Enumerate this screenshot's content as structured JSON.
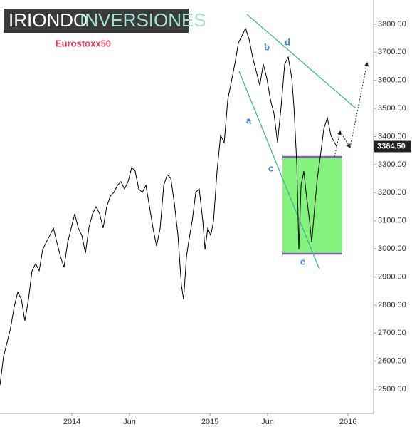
{
  "chart_data": {
    "type": "line",
    "title": "Eurostoxx50",
    "logo": [
      "IRIONDO",
      "INVERSIONES"
    ],
    "annotations": [
      "a",
      "b",
      "c",
      "d",
      "e"
    ],
    "last_price_label": "3364.50",
    "x": [
      2013.479,
      2013.505,
      2013.531,
      2013.556,
      2013.582,
      2013.608,
      2013.634,
      2013.659,
      2013.685,
      2013.711,
      2013.737,
      2013.763,
      2013.788,
      2013.814,
      2013.84,
      2013.866,
      2013.891,
      2013.917,
      2013.943,
      2013.969,
      2013.995,
      2014.02,
      2014.046,
      2014.072,
      2014.098,
      2014.123,
      2014.149,
      2014.175,
      2014.201,
      2014.226,
      2014.252,
      2014.278,
      2014.304,
      2014.33,
      2014.355,
      2014.381,
      2014.407,
      2014.433,
      2014.458,
      2014.484,
      2014.51,
      2014.536,
      2014.562,
      2014.587,
      2014.613,
      2014.639,
      2014.665,
      2014.69,
      2014.716,
      2014.742,
      2014.768,
      2014.793,
      2014.809,
      2014.83,
      2014.845,
      2014.871,
      2014.897,
      2014.922,
      2014.948,
      2014.964,
      2014.984,
      2015.005,
      2015.026,
      2015.051,
      2015.077,
      2015.103,
      2015.129,
      2015.154,
      2015.18,
      2015.206,
      2015.232,
      2015.258,
      2015.283,
      2015.309,
      2015.335,
      2015.361,
      2015.386,
      2015.412,
      2015.438,
      2015.464,
      2015.489,
      2015.515,
      2015.541,
      2015.567,
      2015.593,
      2015.608,
      2015.629,
      2015.644,
      2015.66,
      2015.68,
      2015.696,
      2015.721,
      2015.737,
      2015.758,
      2015.778,
      2015.799,
      2015.825,
      2015.85,
      2015.876,
      2015.902,
      2015.917
    ],
    "series": [
      {
        "color": "#000000",
        "values": [
          2515,
          2617,
          2668,
          2718,
          2795,
          2846,
          2820,
          2744,
          2820,
          2922,
          2947,
          2922,
          2998,
          3023,
          3048,
          3074,
          3023,
          2972,
          2934,
          3023,
          3074,
          3125,
          3074,
          3048,
          2985,
          3074,
          3125,
          3150,
          3125,
          3074,
          3150,
          3188,
          3201,
          3226,
          3239,
          3213,
          3239,
          3290,
          3277,
          3213,
          3201,
          3226,
          3150,
          3074,
          3010,
          3074,
          3226,
          3264,
          3252,
          3163,
          3048,
          2871,
          2820,
          2972,
          3023,
          3099,
          3201,
          3213,
          3099,
          2998,
          3074,
          3048,
          3099,
          3277,
          3404,
          3379,
          3531,
          3594,
          3658,
          3734,
          3759,
          3785,
          3747,
          3683,
          3632,
          3582,
          3658,
          3607,
          3531,
          3480,
          3379,
          3505,
          3658,
          3683,
          3607,
          3505,
          3302,
          2998,
          3226,
          3277,
          3201,
          3099,
          3023,
          3150,
          3252,
          3328,
          3429,
          3467,
          3404,
          3379,
          3364.5
        ]
      }
    ],
    "xlim": [
      2013.479,
      2016.185
    ],
    "xticks": [
      {
        "value": 2014,
        "label": "2014"
      },
      {
        "value": 2014.417,
        "label": "Jun"
      },
      {
        "value": 2015,
        "label": "2015"
      },
      {
        "value": 2015.417,
        "label": "Jun"
      },
      {
        "value": 2016,
        "label": "2016"
      }
    ],
    "ylim": [
      2414,
      3886
    ],
    "yticks": [
      {
        "value": 2500,
        "label": "2500.00"
      },
      {
        "value": 2600,
        "label": "2600.00"
      },
      {
        "value": 2700,
        "label": "2700.00"
      },
      {
        "value": 2800,
        "label": "2800.00"
      },
      {
        "value": 2900,
        "label": "2900.00"
      },
      {
        "value": 3000,
        "label": "3000.00"
      },
      {
        "value": 3100,
        "label": "3100.00"
      },
      {
        "value": 3200,
        "label": "3200.00"
      },
      {
        "value": 3300,
        "label": "3300.00"
      },
      {
        "value": 3400,
        "label": "3400.00"
      },
      {
        "value": 3500,
        "label": "3500.00"
      },
      {
        "value": 3600,
        "label": "3600.00"
      },
      {
        "value": 3700,
        "label": "3700.00"
      },
      {
        "value": 3800,
        "label": "3800.00"
      }
    ],
    "grid": false
  }
}
